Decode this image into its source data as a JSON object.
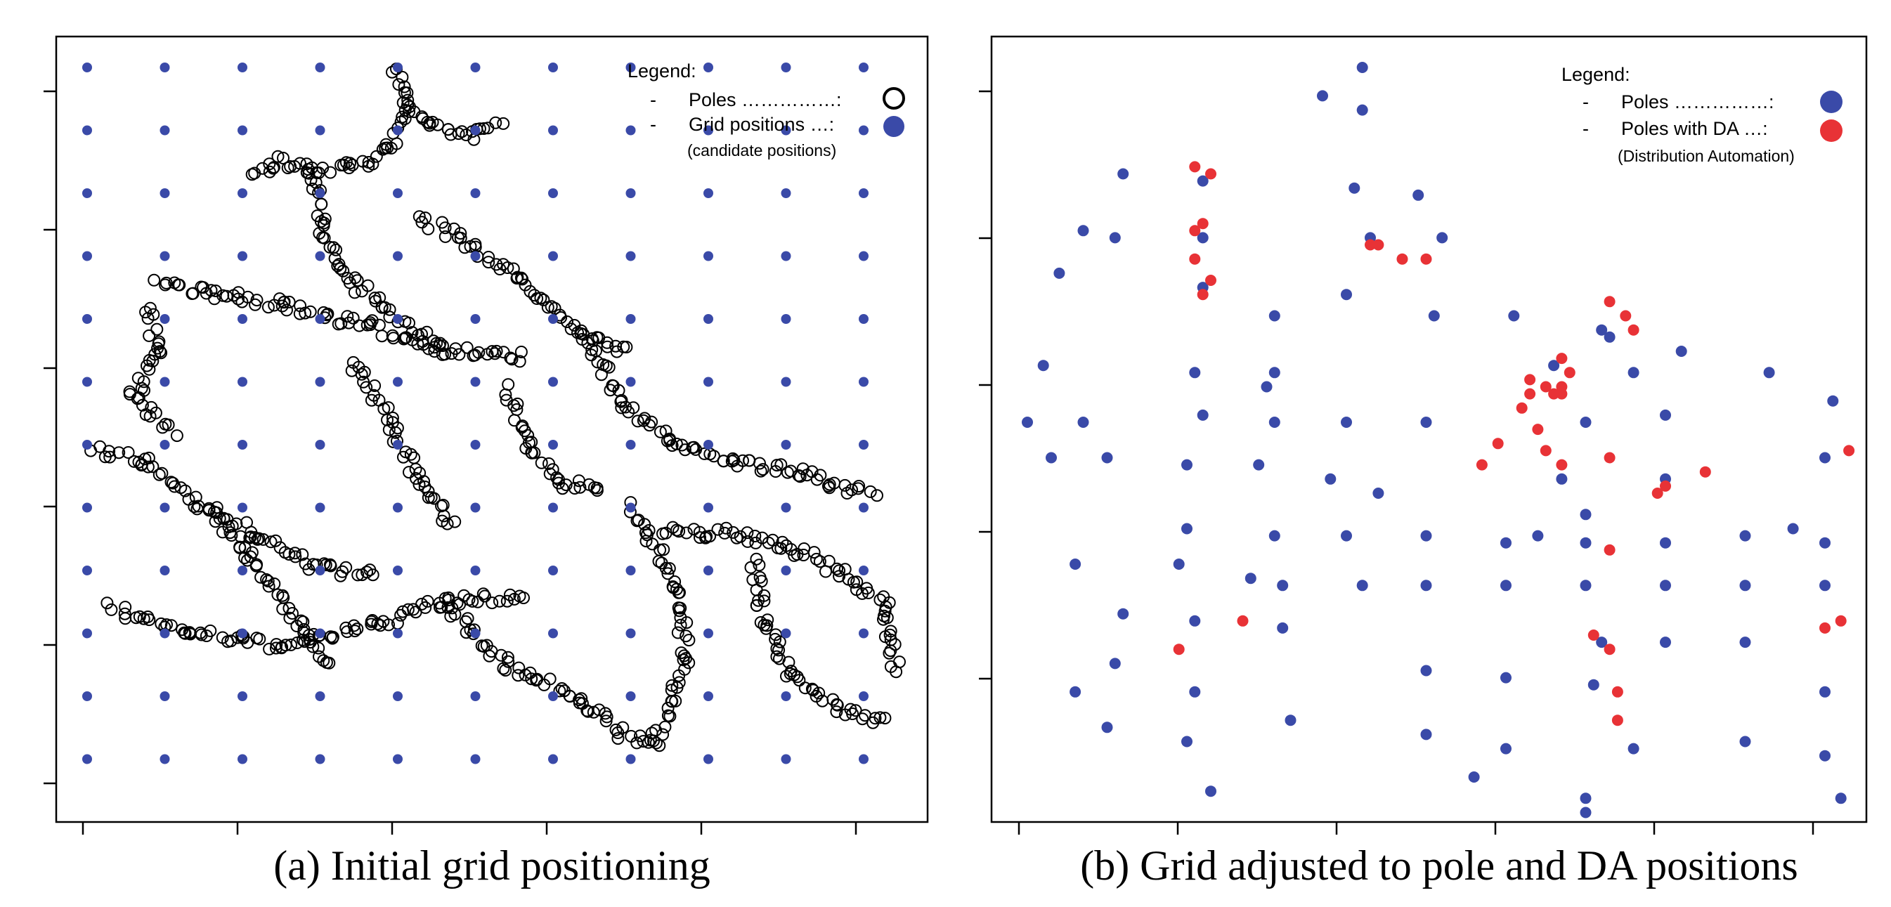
{
  "chart_data": [
    {
      "type": "scatter",
      "caption": "(a) Initial grid positioning",
      "legend": {
        "title": "Legend:",
        "entries": [
          {
            "label": "Poles ……………:",
            "dash": "-",
            "marker": "open-circle",
            "color": "#000000"
          },
          {
            "label": "Grid positions …:",
            "dash": "-",
            "marker": "filled-circle",
            "color": "#3a4aa8"
          }
        ],
        "note": "(candidate positions)"
      },
      "grid_positions": {
        "columns": [
          0,
          1,
          2,
          3,
          4,
          5,
          6,
          7,
          8,
          9,
          10
        ],
        "rows": [
          0,
          1,
          2,
          3,
          4,
          5,
          6,
          7,
          8,
          9,
          10,
          11
        ]
      },
      "poles_segments": [
        [
          [
            4.0,
            0.0
          ],
          [
            4.1,
            0.6
          ],
          [
            4.4,
            0.9
          ],
          [
            4.9,
            1.1
          ],
          [
            5.3,
            0.9
          ]
        ],
        [
          [
            4.1,
            0.6
          ],
          [
            3.9,
            1.3
          ],
          [
            3.4,
            1.6
          ],
          [
            2.9,
            1.6
          ],
          [
            2.4,
            1.5
          ],
          [
            2.1,
            1.7
          ]
        ],
        [
          [
            0.9,
            3.4
          ],
          [
            1.6,
            3.6
          ],
          [
            2.6,
            3.8
          ],
          [
            3.6,
            4.1
          ],
          [
            4.6,
            4.5
          ],
          [
            5.6,
            4.6
          ]
        ],
        [
          [
            2.9,
            1.6
          ],
          [
            3.0,
            2.4
          ],
          [
            3.2,
            3.2
          ],
          [
            3.9,
            3.9
          ],
          [
            4.6,
            4.5
          ]
        ],
        [
          [
            4.3,
            2.4
          ],
          [
            4.9,
            2.8
          ],
          [
            5.6,
            3.4
          ],
          [
            6.4,
            4.3
          ],
          [
            7.0,
            4.5
          ]
        ],
        [
          [
            6.4,
            4.3
          ],
          [
            6.9,
            5.4
          ],
          [
            7.6,
            6.0
          ],
          [
            8.5,
            6.3
          ],
          [
            9.3,
            6.5
          ],
          [
            10.1,
            6.8
          ]
        ],
        [
          [
            0.1,
            6.1
          ],
          [
            0.8,
            6.3
          ],
          [
            1.4,
            6.9
          ],
          [
            2.1,
            7.4
          ],
          [
            2.9,
            7.9
          ],
          [
            3.7,
            8.1
          ]
        ],
        [
          [
            0.3,
            8.6
          ],
          [
            1.4,
            9.0
          ],
          [
            2.5,
            9.2
          ],
          [
            3.6,
            8.9
          ],
          [
            4.6,
            8.5
          ],
          [
            5.6,
            8.4
          ]
        ],
        [
          [
            4.6,
            8.5
          ],
          [
            5.4,
            9.5
          ],
          [
            6.3,
            10.0
          ],
          [
            6.9,
            10.6
          ],
          [
            7.3,
            10.8
          ]
        ],
        [
          [
            7.0,
            7.0
          ],
          [
            7.6,
            8.2
          ],
          [
            7.7,
            9.4
          ],
          [
            7.3,
            10.8
          ]
        ],
        [
          [
            7.4,
            7.4
          ],
          [
            8.2,
            7.4
          ],
          [
            9.0,
            7.6
          ],
          [
            9.7,
            8.0
          ],
          [
            10.3,
            8.6
          ],
          [
            10.4,
            9.6
          ]
        ],
        [
          [
            8.6,
            7.8
          ],
          [
            8.7,
            8.8
          ],
          [
            9.1,
            9.7
          ],
          [
            9.7,
            10.2
          ],
          [
            10.3,
            10.4
          ]
        ],
        [
          [
            0.8,
            3.8
          ],
          [
            0.9,
            4.6
          ],
          [
            0.6,
            5.2
          ],
          [
            1.1,
            5.8
          ]
        ],
        [
          [
            1.6,
            7.0
          ],
          [
            2.1,
            7.8
          ],
          [
            2.7,
            8.8
          ],
          [
            3.1,
            9.5
          ]
        ],
        [
          [
            5.4,
            5.1
          ],
          [
            5.7,
            6.0
          ],
          [
            6.1,
            6.6
          ],
          [
            6.6,
            6.7
          ]
        ],
        [
          [
            3.4,
            4.7
          ],
          [
            3.9,
            5.6
          ],
          [
            4.3,
            6.6
          ],
          [
            4.7,
            7.3
          ]
        ]
      ]
    },
    {
      "type": "scatter",
      "caption": "(b) Grid adjusted to pole and DA positions",
      "legend": {
        "title": "Legend:",
        "entries": [
          {
            "label": "Poles ……………:",
            "dash": "-",
            "marker": "filled-circle",
            "color": "#3a4aa8"
          },
          {
            "label": "Poles with DA …:",
            "dash": "-",
            "marker": "filled-circle",
            "color": "#e83236"
          }
        ],
        "note": "(Distribution Automation)"
      },
      "series": [
        {
          "name": "Poles",
          "color": "#3a4aa8",
          "points": [
            [
              4.2,
              0.0
            ],
            [
              3.7,
              0.4
            ],
            [
              4.2,
              0.6
            ],
            [
              1.2,
              1.5
            ],
            [
              2.2,
              1.6
            ],
            [
              4.1,
              1.7
            ],
            [
              4.9,
              1.8
            ],
            [
              0.7,
              2.3
            ],
            [
              1.1,
              2.4
            ],
            [
              2.2,
              2.4
            ],
            [
              4.3,
              2.4
            ],
            [
              5.2,
              2.4
            ],
            [
              0.4,
              2.9
            ],
            [
              2.2,
              3.1
            ],
            [
              3.1,
              3.5
            ],
            [
              4.0,
              3.2
            ],
            [
              5.1,
              3.5
            ],
            [
              6.1,
              3.5
            ],
            [
              7.2,
              3.7
            ],
            [
              7.3,
              3.8
            ],
            [
              8.2,
              4.0
            ],
            [
              0.2,
              4.2
            ],
            [
              2.1,
              4.3
            ],
            [
              3.1,
              4.3
            ],
            [
              6.6,
              4.2
            ],
            [
              7.6,
              4.3
            ],
            [
              3.0,
              4.5
            ],
            [
              9.3,
              4.3
            ],
            [
              0.0,
              5.0
            ],
            [
              0.7,
              5.0
            ],
            [
              2.2,
              4.9
            ],
            [
              3.1,
              5.0
            ],
            [
              4.0,
              5.0
            ],
            [
              5.0,
              5.0
            ],
            [
              7.0,
              5.0
            ],
            [
              10.1,
              4.7
            ],
            [
              8.0,
              4.9
            ],
            [
              10.0,
              5.5
            ],
            [
              0.3,
              5.5
            ],
            [
              1.0,
              5.5
            ],
            [
              2.0,
              5.6
            ],
            [
              3.8,
              5.8
            ],
            [
              2.9,
              5.6
            ],
            [
              4.4,
              6.0
            ],
            [
              6.7,
              5.8
            ],
            [
              6.4,
              6.6
            ],
            [
              8.0,
              5.8
            ],
            [
              9.6,
              6.5
            ],
            [
              7.0,
              6.3
            ],
            [
              2.0,
              6.5
            ],
            [
              3.1,
              6.6
            ],
            [
              4.0,
              6.6
            ],
            [
              5.0,
              6.6
            ],
            [
              6.0,
              6.7
            ],
            [
              7.0,
              6.7
            ],
            [
              8.0,
              6.7
            ],
            [
              9.0,
              6.6
            ],
            [
              10.0,
              6.7
            ],
            [
              0.6,
              7.0
            ],
            [
              1.9,
              7.0
            ],
            [
              2.8,
              7.2
            ],
            [
              3.2,
              7.3
            ],
            [
              4.2,
              7.3
            ],
            [
              5.0,
              7.3
            ],
            [
              6.0,
              7.3
            ],
            [
              7.0,
              7.3
            ],
            [
              8.0,
              7.3
            ],
            [
              9.0,
              7.3
            ],
            [
              10.0,
              7.3
            ],
            [
              1.2,
              7.7
            ],
            [
              2.1,
              7.8
            ],
            [
              3.2,
              7.9
            ],
            [
              7.2,
              8.1
            ],
            [
              8.0,
              8.1
            ],
            [
              9.0,
              8.1
            ],
            [
              1.1,
              8.4
            ],
            [
              5.0,
              8.5
            ],
            [
              6.0,
              8.6
            ],
            [
              7.1,
              8.7
            ],
            [
              10.0,
              8.8
            ],
            [
              2.1,
              8.8
            ],
            [
              0.6,
              8.8
            ],
            [
              1.0,
              9.3
            ],
            [
              3.3,
              9.2
            ],
            [
              2.0,
              9.5
            ],
            [
              5.0,
              9.4
            ],
            [
              6.0,
              9.6
            ],
            [
              7.6,
              9.6
            ],
            [
              9.0,
              9.5
            ],
            [
              10.0,
              9.7
            ],
            [
              2.3,
              10.2
            ],
            [
              5.6,
              10.0
            ],
            [
              7.0,
              10.3
            ],
            [
              10.2,
              10.3
            ],
            [
              7.0,
              10.5
            ]
          ]
        },
        {
          "name": "Poles with DA",
          "color": "#e83236",
          "points": [
            [
              2.1,
              1.4
            ],
            [
              2.3,
              1.5
            ],
            [
              2.2,
              2.2
            ],
            [
              2.1,
              2.3
            ],
            [
              4.4,
              2.5
            ],
            [
              4.7,
              2.7
            ],
            [
              5.0,
              2.7
            ],
            [
              4.3,
              2.5
            ],
            [
              7.3,
              3.3
            ],
            [
              7.5,
              3.5
            ],
            [
              7.6,
              3.7
            ],
            [
              6.7,
              4.1
            ],
            [
              6.8,
              4.3
            ],
            [
              6.7,
              4.5
            ],
            [
              6.7,
              4.6
            ],
            [
              6.3,
              4.4
            ],
            [
              6.3,
              4.6
            ],
            [
              6.2,
              4.8
            ],
            [
              6.5,
              4.5
            ],
            [
              6.6,
              4.6
            ],
            [
              5.9,
              5.3
            ],
            [
              5.7,
              5.6
            ],
            [
              6.4,
              5.1
            ],
            [
              6.5,
              5.4
            ],
            [
              6.7,
              5.6
            ],
            [
              7.3,
              5.5
            ],
            [
              7.9,
              6.0
            ],
            [
              8.0,
              5.9
            ],
            [
              8.5,
              5.7
            ],
            [
              10.3,
              5.4
            ],
            [
              7.3,
              6.8
            ],
            [
              2.7,
              7.8
            ],
            [
              7.1,
              8.0
            ],
            [
              10.0,
              7.9
            ],
            [
              10.2,
              7.8
            ],
            [
              1.9,
              8.2
            ],
            [
              7.3,
              8.2
            ],
            [
              7.4,
              8.8
            ],
            [
              7.4,
              9.2
            ]
          ]
        }
      ],
      "extra_da_points": [
        [
          2.1,
          2.7
        ],
        [
          2.3,
          3.0
        ],
        [
          2.2,
          3.2
        ]
      ]
    }
  ]
}
